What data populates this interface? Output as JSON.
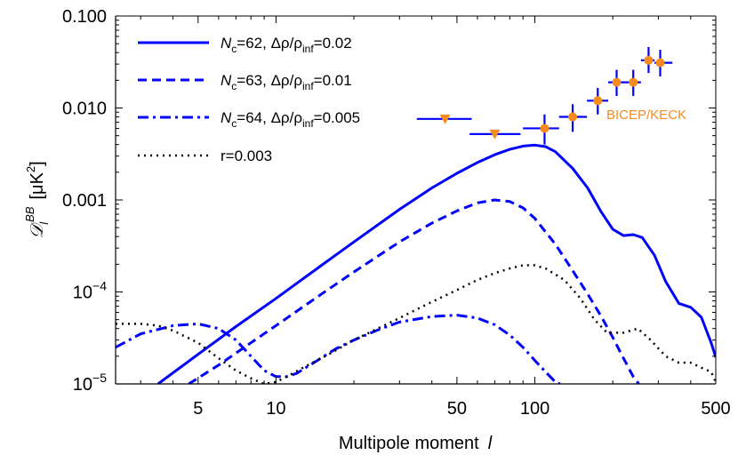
{
  "chart_data": {
    "type": "line",
    "xscale": "log",
    "yscale": "log",
    "xlim": [
      2.4,
      500
    ],
    "ylim": [
      1e-05,
      0.1
    ],
    "xticks": [
      {
        "value": 5,
        "label": "5"
      },
      {
        "value": 10,
        "label": "10"
      },
      {
        "value": 50,
        "label": "50"
      },
      {
        "value": 100,
        "label": "100"
      },
      {
        "value": 500,
        "label": "500"
      }
    ],
    "yticks": [
      {
        "value": 0.1,
        "label": "0.100"
      },
      {
        "value": 0.01,
        "label": "0.010"
      },
      {
        "value": 0.001,
        "label": "0.001"
      },
      {
        "value": 0.0001,
        "label": "10",
        "exp": "−4"
      },
      {
        "value": 1e-05,
        "label": "10",
        "exp": "−5"
      }
    ],
    "xlabel": "Multipole moment",
    "xlabel_symbol": "l",
    "ylabel": "[μK",
    "ylabel_sup": "2",
    "ylabel_close": "]",
    "ylabel_symbol": "𝒟",
    "ylabel_sub": "l",
    "ylabel_symbol_sup": "BB",
    "grid": false,
    "legend_position": "top-left",
    "series": [
      {
        "name": "N",
        "name_sub": "c",
        "name_rest": "=62, Δρ/ρ",
        "name_sub2": "inf",
        "name_end": "=0.02",
        "color": "#0000ff",
        "style": "solid",
        "points": [
          [
            3.5,
            1e-05
          ],
          [
            5,
            2.1e-05
          ],
          [
            7,
            4.2e-05
          ],
          [
            10,
            8.5e-05
          ],
          [
            15,
            0.000195
          ],
          [
            20,
            0.00035
          ],
          [
            30,
            0.00079
          ],
          [
            40,
            0.00135
          ],
          [
            50,
            0.00195
          ],
          [
            60,
            0.00255
          ],
          [
            70,
            0.0031
          ],
          [
            80,
            0.00355
          ],
          [
            90,
            0.00385
          ],
          [
            100,
            0.00395
          ],
          [
            110,
            0.0038
          ],
          [
            120,
            0.00335
          ],
          [
            140,
            0.0022
          ],
          [
            160,
            0.00135
          ],
          [
            180,
            0.00075
          ],
          [
            200,
            0.00048
          ],
          [
            220,
            0.00041
          ],
          [
            240,
            0.00042
          ],
          [
            260,
            0.00039
          ],
          [
            290,
            0.00025
          ],
          [
            320,
            0.00013
          ],
          [
            360,
            7.5e-05
          ],
          [
            400,
            6.8e-05
          ],
          [
            440,
            5.3e-05
          ],
          [
            480,
            2.8e-05
          ],
          [
            500,
            1.95e-05
          ]
        ]
      },
      {
        "name": "N",
        "name_sub": "c",
        "name_rest": "=63, Δρ/ρ",
        "name_sub2": "inf",
        "name_end": "=0.01",
        "color": "#0000ff",
        "style": "dashed",
        "points": [
          [
            4.6,
            1e-05
          ],
          [
            6,
            1.6e-05
          ],
          [
            8,
            2.8e-05
          ],
          [
            10,
            4.3e-05
          ],
          [
            15,
            9.5e-05
          ],
          [
            20,
            0.000165
          ],
          [
            30,
            0.00035
          ],
          [
            40,
            0.00056
          ],
          [
            50,
            0.00076
          ],
          [
            60,
            0.00093
          ],
          [
            70,
            0.001
          ],
          [
            80,
            0.00096
          ],
          [
            90,
            0.00082
          ],
          [
            100,
            0.00063
          ],
          [
            120,
            0.00033
          ],
          [
            140,
            0.00017
          ],
          [
            160,
            9.5e-05
          ],
          [
            180,
            5.5e-05
          ],
          [
            200,
            3.2e-05
          ],
          [
            220,
            1.9e-05
          ],
          [
            240,
            1.2e-05
          ],
          [
            252,
            1e-05
          ]
        ]
      },
      {
        "name": "N",
        "name_sub": "c",
        "name_rest": "=64, Δρ/ρ",
        "name_sub2": "inf",
        "name_end": "=0.005",
        "color": "#0000ff",
        "style": "dashdot",
        "points": [
          [
            2.4,
            2.5e-05
          ],
          [
            3,
            3.5e-05
          ],
          [
            4,
            4.3e-05
          ],
          [
            5,
            4.5e-05
          ],
          [
            6,
            4e-05
          ],
          [
            7,
            3e-05
          ],
          [
            8,
            2e-05
          ],
          [
            9,
            1.4e-05
          ],
          [
            10,
            1.2e-05
          ],
          [
            11,
            1.2e-05
          ],
          [
            12,
            1.3e-05
          ],
          [
            14,
            1.7e-05
          ],
          [
            17,
            2.4e-05
          ],
          [
            20,
            3e-05
          ],
          [
            25,
            3.9e-05
          ],
          [
            30,
            4.7e-05
          ],
          [
            40,
            5.4e-05
          ],
          [
            50,
            5.6e-05
          ],
          [
            60,
            5.2e-05
          ],
          [
            70,
            4.4e-05
          ],
          [
            80,
            3.4e-05
          ],
          [
            90,
            2.5e-05
          ],
          [
            100,
            1.8e-05
          ],
          [
            110,
            1.35e-05
          ],
          [
            120,
            1.05e-05
          ],
          [
            125,
            1e-05
          ]
        ]
      },
      {
        "name": "r=0.003",
        "color": "#000000",
        "style": "dotted",
        "points": [
          [
            2.4,
            4.5e-05
          ],
          [
            3,
            4.5e-05
          ],
          [
            3.5,
            4.3e-05
          ],
          [
            4,
            3.8e-05
          ],
          [
            5,
            2.8e-05
          ],
          [
            6,
            1.9e-05
          ],
          [
            7,
            1.4e-05
          ],
          [
            8,
            1.15e-05
          ],
          [
            9,
            1e-05
          ],
          [
            10,
            1.05e-05
          ],
          [
            11,
            1.2e-05
          ],
          [
            13,
            1.55e-05
          ],
          [
            16,
            2.1e-05
          ],
          [
            20,
            3e-05
          ],
          [
            30,
            5.2e-05
          ],
          [
            40,
            7.8e-05
          ],
          [
            50,
            0.000105
          ],
          [
            60,
            0.000135
          ],
          [
            70,
            0.00016
          ],
          [
            80,
            0.00018
          ],
          [
            90,
            0.000195
          ],
          [
            100,
            0.000195
          ],
          [
            110,
            0.00018
          ],
          [
            130,
            0.000135
          ],
          [
            150,
            8.5e-05
          ],
          [
            170,
            5e-05
          ],
          [
            190,
            3.6e-05
          ],
          [
            220,
            3.6e-05
          ],
          [
            250,
            4e-05
          ],
          [
            280,
            3e-05
          ],
          [
            320,
            2e-05
          ],
          [
            360,
            1.7e-05
          ],
          [
            400,
            1.7e-05
          ],
          [
            440,
            1.5e-05
          ],
          [
            480,
            1.35e-05
          ],
          [
            500,
            1.05e-05
          ]
        ]
      }
    ],
    "bicep": {
      "label": "BICEP/KECK",
      "color": "#f68b1f",
      "errcolor": "#0000ff",
      "upper_limits": [
        {
          "x": 45,
          "xerr": [
            35,
            57
          ],
          "y": 0.0076
        },
        {
          "x": 70,
          "xerr": [
            56,
            88
          ],
          "y": 0.0052
        }
      ],
      "points": [
        {
          "x": 109,
          "xerr": [
            90,
            124
          ],
          "y": 0.006,
          "yerr": [
            0.004,
            0.0085
          ]
        },
        {
          "x": 140,
          "xerr": [
            124,
            159
          ],
          "y": 0.008,
          "yerr": [
            0.0055,
            0.011
          ]
        },
        {
          "x": 175,
          "xerr": [
            159,
            192
          ],
          "y": 0.012,
          "yerr": [
            0.0085,
            0.0165
          ]
        },
        {
          "x": 207,
          "xerr": [
            192,
            225
          ],
          "y": 0.019,
          "yerr": [
            0.0135,
            0.026
          ]
        },
        {
          "x": 240,
          "xerr": [
            225,
            257
          ],
          "y": 0.019,
          "yerr": [
            0.0135,
            0.026
          ]
        },
        {
          "x": 275,
          "xerr": [
            257,
            290
          ],
          "y": 0.033,
          "yerr": [
            0.024,
            0.046
          ]
        },
        {
          "x": 305,
          "xerr": [
            290,
            340
          ],
          "y": 0.031,
          "yerr": [
            0.022,
            0.043
          ]
        }
      ]
    }
  }
}
